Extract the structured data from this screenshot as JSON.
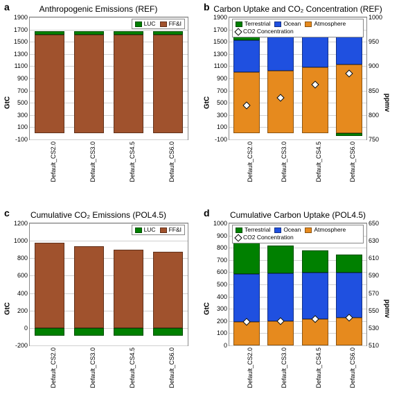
{
  "colors": {
    "luc": "#008000",
    "ffi": "#a0522d",
    "terrestrial": "#008000",
    "ocean": "#1f50e0",
    "atmosphere": "#e68a1e",
    "grid": "#d0d0d0",
    "border": "#888888",
    "marker_fill": "#ffffff",
    "marker_stroke": "#000000"
  },
  "categories": [
    "Default_CS2.0",
    "Default_CS3.0",
    "Default_CS4.5",
    "Default_CS6.0"
  ],
  "panels": {
    "a": {
      "letter": "a",
      "title": "Anthropogenic Emissions (REF)",
      "ylabel": "GtC",
      "ylim": [
        -100,
        1900
      ],
      "ytick_step": 200,
      "legend_keys": [
        "luc",
        "ffi"
      ],
      "legend_labels": {
        "luc": "LUC",
        "ffi": "FF&I"
      },
      "legend_pos": "right",
      "stacks": [
        {
          "ffi": 1620,
          "luc": 55
        },
        {
          "ffi": 1620,
          "luc": 55
        },
        {
          "ffi": 1620,
          "luc": 55
        },
        {
          "ffi": 1620,
          "luc": 55
        }
      ]
    },
    "b": {
      "letter": "b",
      "title": "Carbon Uptake and CO₂ Concentration (REF)",
      "ylabel": "GtC",
      "ylim": [
        -100,
        1900
      ],
      "ytick_step": 200,
      "y2label": "ppmv",
      "y2lim": [
        750,
        1000
      ],
      "y2tick_step": 50,
      "legend_keys": [
        "terrestrial",
        "ocean",
        "atmosphere",
        "co2"
      ],
      "legend_labels": {
        "terrestrial": "Terrestrial",
        "ocean": "Ocean",
        "atmosphere": "Atmosphere",
        "co2": "CO2 Concentration"
      },
      "legend_pos": "left",
      "stacks": [
        {
          "atmosphere": 1000,
          "ocean": 530,
          "terrestrial": 145
        },
        {
          "atmosphere": 1030,
          "ocean": 555,
          "terrestrial": 90
        },
        {
          "atmosphere": 1085,
          "ocean": 570,
          "terrestrial": 20
        },
        {
          "atmosphere": 1130,
          "ocean": 585,
          "terrestrial": -40
        }
      ],
      "markers": [
        820,
        835,
        862,
        885
      ]
    },
    "c": {
      "letter": "c",
      "title": "Cumulative CO₂ Emissions (POL4.5)",
      "ylabel": "GtC",
      "ylim": [
        -200,
        1200
      ],
      "ytick_step": 200,
      "legend_keys": [
        "luc",
        "ffi"
      ],
      "legend_labels": {
        "luc": "LUC",
        "ffi": "FF&I"
      },
      "legend_pos": "right",
      "stacks": [
        {
          "luc": -85,
          "ffi": 980
        },
        {
          "luc": -85,
          "ffi": 940
        },
        {
          "luc": -85,
          "ffi": 900
        },
        {
          "luc": -85,
          "ffi": 870
        }
      ]
    },
    "d": {
      "letter": "d",
      "title": "Cumulative Carbon Uptake (POL4.5)",
      "ylabel": "GtC",
      "ylim": [
        0,
        1000
      ],
      "ytick_step": 100,
      "y2label": "ppmv",
      "y2lim": [
        510,
        650
      ],
      "y2tick_step": 20,
      "legend_keys": [
        "terrestrial",
        "ocean",
        "atmosphere",
        "co2"
      ],
      "legend_labels": {
        "terrestrial": "Terrestrial",
        "ocean": "Ocean",
        "atmosphere": "Atmosphere",
        "co2": "CO2 Concentration"
      },
      "legend_pos": "left",
      "stacks": [
        {
          "atmosphere": 195,
          "ocean": 390,
          "terrestrial": 275
        },
        {
          "atmosphere": 200,
          "ocean": 390,
          "terrestrial": 230
        },
        {
          "atmosphere": 215,
          "ocean": 380,
          "terrestrial": 185
        },
        {
          "atmosphere": 225,
          "ocean": 370,
          "terrestrial": 150
        }
      ],
      "markers": [
        537,
        538,
        540,
        542
      ]
    }
  }
}
